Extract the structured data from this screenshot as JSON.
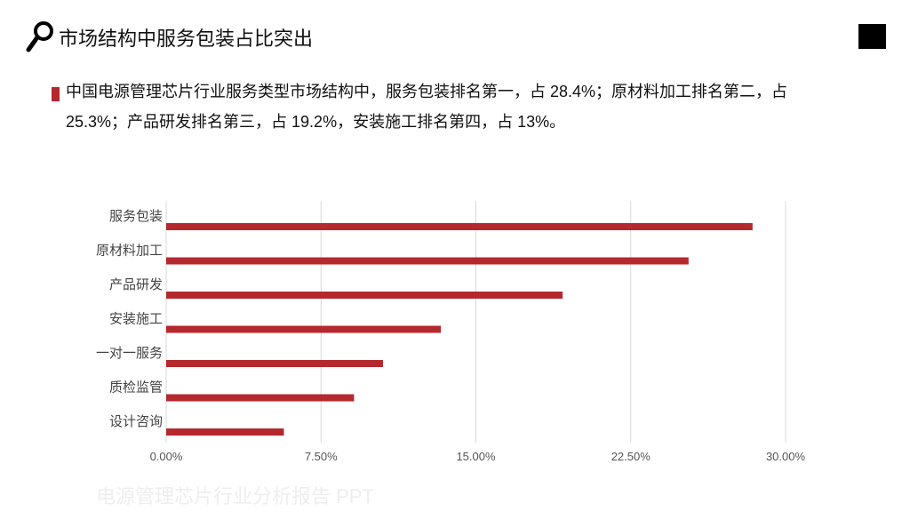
{
  "header": {
    "title": "市场结构中服务包装占比突出",
    "icon": "magnifier-icon"
  },
  "summary": {
    "text": "中国电源管理芯片行业服务类型市场结构中，服务包装排名第一，占 28.4%；原材料加工排名第二，占 25.3%；产品研发排名第三，占 19.2%，安装施工排名第四，占 13%。"
  },
  "footer": {
    "text": "电源管理芯片行业分析报告 PPT"
  },
  "colors": {
    "bar": "#b5282e",
    "accent": "#b5282e",
    "grid": "#d9d9d9"
  },
  "chart_data": {
    "type": "bar",
    "orientation": "horizontal",
    "categories": [
      "服务包装",
      "原材料加工",
      "产品研发",
      "安装施工",
      "一对一服务",
      "质检监管",
      "设计咨询"
    ],
    "values": [
      28.4,
      25.3,
      19.2,
      13.3,
      10.5,
      9.1,
      5.7
    ],
    "xlim": [
      0,
      30
    ],
    "xticks": [
      0,
      7.5,
      15,
      22.5,
      30
    ],
    "xtick_labels": [
      "0.00%",
      "7.50%",
      "15.00%",
      "22.50%",
      "30.00%"
    ],
    "grid": "vertical",
    "legend": "none"
  }
}
